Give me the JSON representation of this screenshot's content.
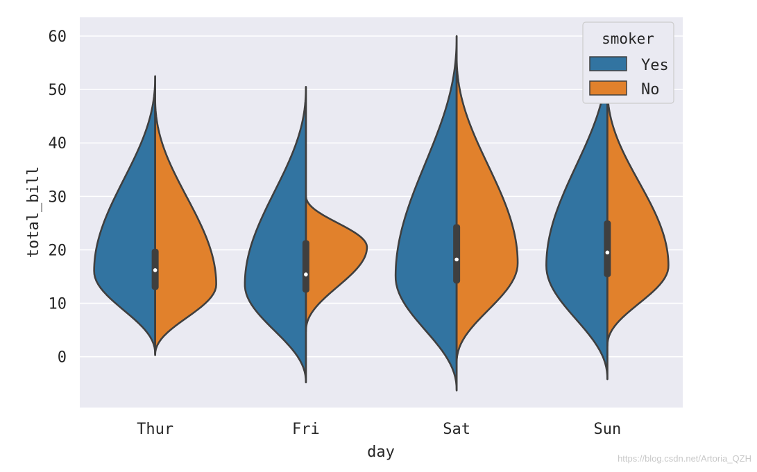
{
  "chart_data": {
    "type": "violin",
    "split": true,
    "title": "",
    "xlabel": "day",
    "ylabel": "total_bill",
    "categories": [
      "Thur",
      "Fri",
      "Sat",
      "Sun"
    ],
    "ylim": [
      -9.5,
      63.5
    ],
    "yticks": [
      0,
      10,
      20,
      30,
      40,
      50,
      60
    ],
    "grid": true,
    "hue": "smoker",
    "legend": {
      "title": "smoker",
      "position": "top-right",
      "entries": [
        "Yes",
        "No"
      ]
    },
    "series": [
      {
        "name": "Yes",
        "color": "#3274a1",
        "range": [
          [
            0.5,
            52.5
          ],
          [
            -4.8,
            50.5
          ],
          [
            -6.3,
            60.0
          ],
          [
            -4.2,
            56.7
          ]
        ],
        "peak": [
          16,
          13.5,
          15,
          17
        ]
      },
      {
        "name": "No",
        "color": "#e1812c",
        "range": [
          [
            0.3,
            48.5
          ],
          [
            4.7,
            30.2
          ],
          [
            -1.2,
            56.5
          ],
          [
            2.0,
            50.5
          ]
        ],
        "peak": [
          13.5,
          20.5,
          17.5,
          17
        ]
      }
    ],
    "box": [
      {
        "q1": 12.5,
        "median": 16.2,
        "q3": 20.2
      },
      {
        "q1": 12.0,
        "median": 15.4,
        "q3": 21.8
      },
      {
        "q1": 13.7,
        "median": 18.2,
        "q3": 24.8
      },
      {
        "q1": 14.9,
        "median": 19.5,
        "q3": 25.5
      }
    ]
  },
  "watermark": "https://blog.csdn.net/Artoria_QZH"
}
